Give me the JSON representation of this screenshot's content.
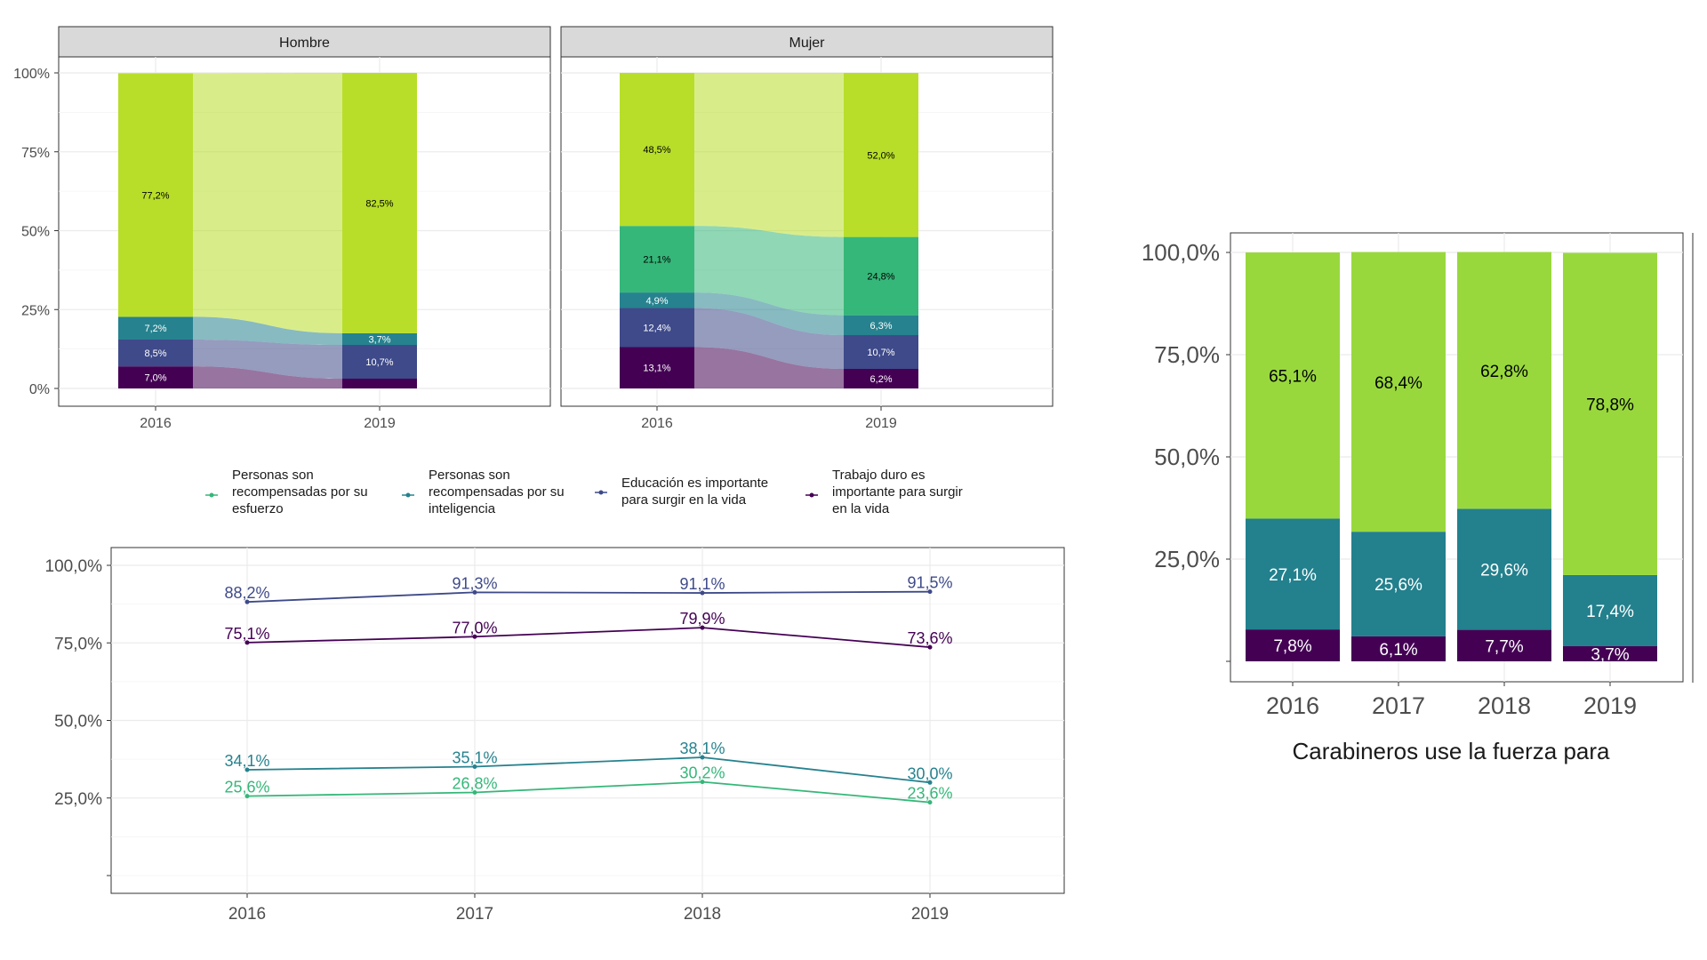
{
  "colors": {
    "esfuerzo": "#35b779",
    "inteligencia": "#26828e",
    "educacion": "#3e4a89",
    "trabajo": "#440154",
    "other": "#b8de29",
    "bar_green": "#99d83d",
    "bar_teal": "#23808d",
    "bar_purple": "#440154",
    "grid": "#ebebeb",
    "strip": "#d9d9d9"
  },
  "legend": {
    "items": [
      {
        "key": "esfuerzo",
        "lines": [
          "Personas son",
          "recompensadas por su",
          "esfuerzo"
        ]
      },
      {
        "key": "inteligencia",
        "lines": [
          "Personas son",
          "recompensadas por su",
          "inteligencia"
        ]
      },
      {
        "key": "educacion",
        "lines": [
          "Educación es importante",
          "para surgir en la vida"
        ]
      },
      {
        "key": "trabajo",
        "lines": [
          "Trabajo duro es",
          "importante para surgir",
          "en la vida"
        ]
      }
    ]
  },
  "chart_data": [
    {
      "type": "bar",
      "subtype": "alluvial",
      "facets": [
        "Hombre",
        "Mujer"
      ],
      "categories": [
        "2016",
        "2019"
      ],
      "y_ticks": [
        "0%",
        "25%",
        "50%",
        "75%",
        "100%"
      ],
      "ylim": [
        0,
        100
      ],
      "grid": true,
      "panels": [
        {
          "facet": "Hombre",
          "stacks": {
            "2016": [
              {
                "key": "trabajo",
                "value": 7.0,
                "label": "7,0%"
              },
              {
                "key": "educacion",
                "value": 8.5,
                "label": "8,5%"
              },
              {
                "key": "inteligencia",
                "value": 7.2,
                "label": "7,2%"
              },
              {
                "key": "other",
                "value": 77.2,
                "label": "77,2%"
              }
            ],
            "2019": [
              {
                "key": "trabajo",
                "value": 3.1,
                "label": ""
              },
              {
                "key": "educacion",
                "value": 10.7,
                "label": "10,7%"
              },
              {
                "key": "inteligencia",
                "value": 3.7,
                "label": "3,7%"
              },
              {
                "key": "other",
                "value": 82.5,
                "label": "82,5%"
              }
            ]
          }
        },
        {
          "facet": "Mujer",
          "stacks": {
            "2016": [
              {
                "key": "trabajo",
                "value": 13.1,
                "label": "13,1%"
              },
              {
                "key": "educacion",
                "value": 12.4,
                "label": "12,4%"
              },
              {
                "key": "inteligencia",
                "value": 4.9,
                "label": "4,9%"
              },
              {
                "key": "esfuerzo",
                "value": 21.1,
                "label": "21,1%"
              },
              {
                "key": "other",
                "value": 48.5,
                "label": "48,5%"
              }
            ],
            "2019": [
              {
                "key": "trabajo",
                "value": 6.2,
                "label": "6,2%"
              },
              {
                "key": "educacion",
                "value": 10.7,
                "label": "10,7%"
              },
              {
                "key": "inteligencia",
                "value": 6.3,
                "label": "6,3%"
              },
              {
                "key": "esfuerzo",
                "value": 24.8,
                "label": "24,8%"
              },
              {
                "key": "other",
                "value": 52.0,
                "label": "52,0%"
              }
            ]
          }
        }
      ]
    },
    {
      "type": "line",
      "x": [
        "2016",
        "2017",
        "2018",
        "2019"
      ],
      "y_ticks": [
        "25,0%",
        "50,0%",
        "75,0%",
        "100,0%"
      ],
      "ylim": [
        0,
        100
      ],
      "grid": true,
      "series": [
        {
          "name": "Educación es importante para surgir en la vida",
          "key": "educacion",
          "values": [
            88.2,
            91.3,
            91.1,
            91.5
          ],
          "labels": [
            "88,2%",
            "91,3%",
            "91,1%",
            "91,5%"
          ]
        },
        {
          "name": "Trabajo duro es importante para surgir en la vida",
          "key": "trabajo",
          "values": [
            75.1,
            77.0,
            79.9,
            73.6
          ],
          "labels": [
            "75,1%",
            "77,0%",
            "79,9%",
            "73,6%"
          ]
        },
        {
          "name": "Personas son recompensadas por su inteligencia",
          "key": "inteligencia",
          "values": [
            34.1,
            35.1,
            38.1,
            30.0
          ],
          "labels": [
            "34,1%",
            "35,1%",
            "38,1%",
            "30,0%"
          ]
        },
        {
          "name": "Personas son recompensadas por su esfuerzo",
          "key": "esfuerzo",
          "values": [
            25.6,
            26.8,
            30.2,
            23.6
          ],
          "labels": [
            "25,6%",
            "26,8%",
            "30,2%",
            "23,6%"
          ]
        }
      ]
    },
    {
      "type": "bar",
      "stacked": true,
      "categories": [
        "2016",
        "2017",
        "2018",
        "2019"
      ],
      "y_ticks": [
        "25,0%",
        "50,0%",
        "75,0%",
        "100,0%"
      ],
      "ylim": [
        0,
        100
      ],
      "xlabel": "Carabineros use la fuerza para",
      "series": [
        {
          "color_key": "bar_purple",
          "values": [
            7.8,
            6.1,
            7.7,
            3.7
          ],
          "labels": [
            "7,8%",
            "6,1%",
            "7,7%",
            "3,7%"
          ]
        },
        {
          "color_key": "bar_teal",
          "values": [
            27.1,
            25.6,
            29.6,
            17.4
          ],
          "labels": [
            "27,1%",
            "25,6%",
            "29,6%",
            "17,4%"
          ]
        },
        {
          "color_key": "bar_green",
          "values": [
            65.1,
            68.4,
            62.8,
            78.8
          ],
          "labels": [
            "65,1%",
            "68,4%",
            "62,8%",
            "78,8%"
          ]
        }
      ]
    }
  ]
}
